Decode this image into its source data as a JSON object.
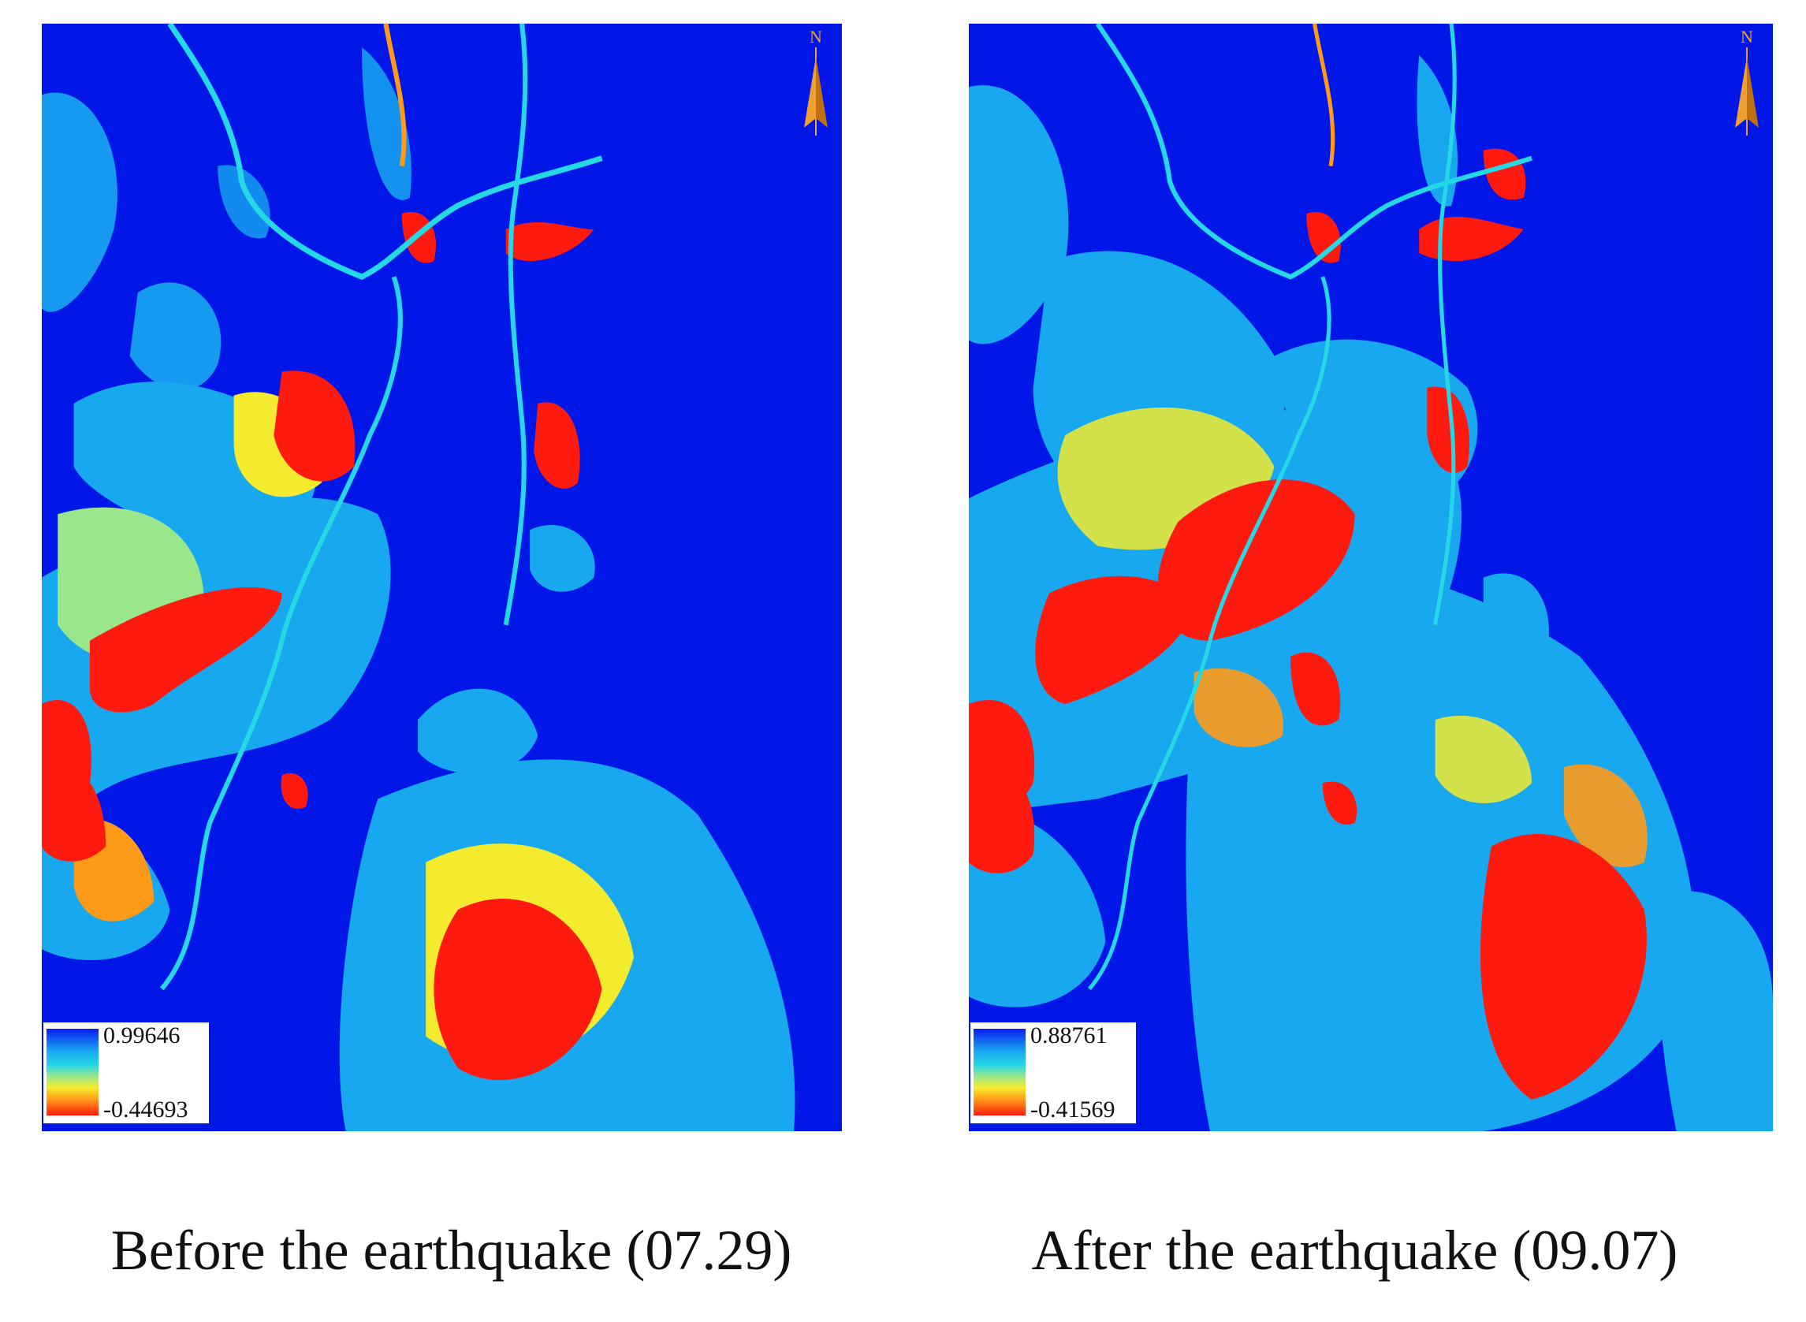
{
  "figure": {
    "panels": [
      {
        "id": "before",
        "caption": "Before the earthquake (07.29)",
        "legend": {
          "max": "0.99646",
          "min": "-0.44693"
        },
        "north_label": "N"
      },
      {
        "id": "after",
        "caption": "After the earthquake (09.07)",
        "legend": {
          "max": "0.88761",
          "min": "-0.41569"
        },
        "north_label": "N"
      }
    ]
  },
  "colors": {
    "high": "#0017E8",
    "upper_mid": "#18A8F0",
    "mid": "#25D8E5",
    "lower_mid": "#F4EB2E",
    "low_orange": "#FF9A18",
    "low": "#FF1A10",
    "north_arrow": "#F0A030"
  },
  "icons": {
    "north": "north-arrow-icon"
  }
}
